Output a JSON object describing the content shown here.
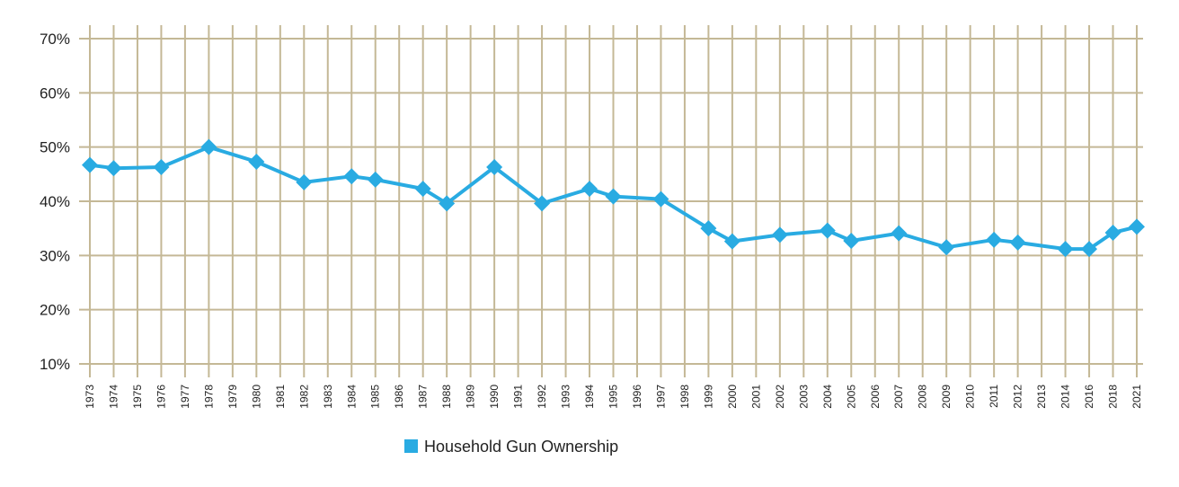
{
  "chart_data": {
    "type": "line",
    "x": [
      "1973",
      "1974",
      "1975",
      "1976",
      "1977",
      "1978",
      "1979",
      "1980",
      "1981",
      "1982",
      "1983",
      "1984",
      "1985",
      "1986",
      "1987",
      "1988",
      "1989",
      "1990",
      "1991",
      "1992",
      "1993",
      "1994",
      "1995",
      "1996",
      "1997",
      "1998",
      "1999",
      "2000",
      "2001",
      "2002",
      "2003",
      "2004",
      "2005",
      "2006",
      "2007",
      "2008",
      "2009",
      "2010",
      "2011",
      "2012",
      "2013",
      "2014",
      "2016",
      "2018",
      "2021"
    ],
    "y_ticks": [
      "10%",
      "20%",
      "30%",
      "40%",
      "50%",
      "60%",
      "70%"
    ],
    "ylim": [
      10,
      70
    ],
    "grid": true,
    "legend_position": "bottom",
    "series": [
      {
        "name": "Household Gun Ownership",
        "color": "#29abe2",
        "points": [
          {
            "x": "1973",
            "y": 46.7
          },
          {
            "x": "1974",
            "y": 46.1
          },
          {
            "x": "1976",
            "y": 46.3
          },
          {
            "x": "1978",
            "y": 50.0
          },
          {
            "x": "1980",
            "y": 47.3
          },
          {
            "x": "1982",
            "y": 43.5
          },
          {
            "x": "1984",
            "y": 44.6
          },
          {
            "x": "1985",
            "y": 44.0
          },
          {
            "x": "1987",
            "y": 42.3
          },
          {
            "x": "1988",
            "y": 39.6
          },
          {
            "x": "1990",
            "y": 46.3
          },
          {
            "x": "1992",
            "y": 39.6
          },
          {
            "x": "1994",
            "y": 42.3
          },
          {
            "x": "1995",
            "y": 40.9
          },
          {
            "x": "1997",
            "y": 40.4
          },
          {
            "x": "1999",
            "y": 35.0
          },
          {
            "x": "2000",
            "y": 32.6
          },
          {
            "x": "2002",
            "y": 33.8
          },
          {
            "x": "2004",
            "y": 34.6
          },
          {
            "x": "2005",
            "y": 32.7
          },
          {
            "x": "2007",
            "y": 34.1
          },
          {
            "x": "2009",
            "y": 31.5
          },
          {
            "x": "2011",
            "y": 32.9
          },
          {
            "x": "2012",
            "y": 32.4
          },
          {
            "x": "2014",
            "y": 31.2
          },
          {
            "x": "2016",
            "y": 31.2
          },
          {
            "x": "2018",
            "y": 34.2
          },
          {
            "x": "2021",
            "y": 35.3
          }
        ]
      }
    ]
  }
}
